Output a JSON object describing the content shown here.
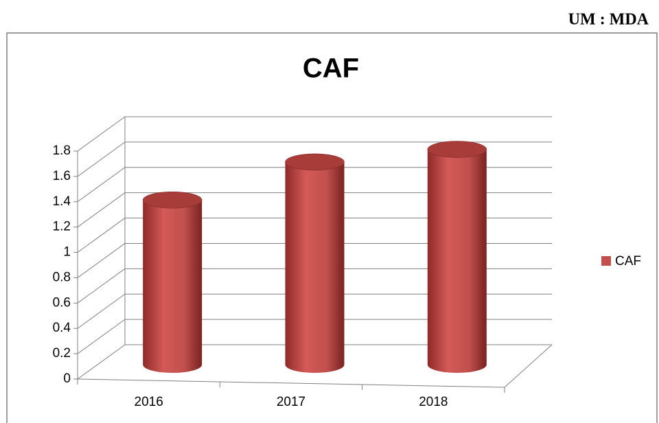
{
  "header": "UM : MDA",
  "chart_data": {
    "type": "bar3d",
    "title": "CAF",
    "categories": [
      "2016",
      "2017",
      "2018"
    ],
    "series": [
      {
        "name": "CAF",
        "color": "#c0504d",
        "values": [
          1.3,
          1.6,
          1.7
        ]
      }
    ],
    "ylim": [
      0,
      1.8
    ],
    "yticks": [
      0,
      0.2,
      0.4,
      0.6,
      0.8,
      1,
      1.2,
      1.4,
      1.6,
      1.8
    ],
    "grid": true,
    "legend": "right"
  }
}
